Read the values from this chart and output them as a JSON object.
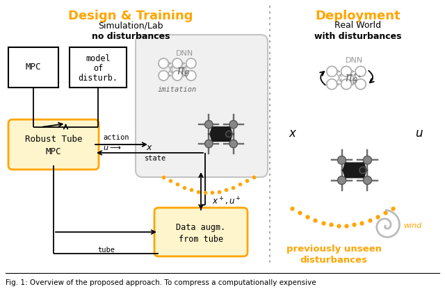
{
  "title_left": "Design & Training",
  "subtitle_left1": "Simulation/Lab",
  "subtitle_left2": "no disturbances",
  "title_right": "Deployment",
  "subtitle_right1": "Real World",
  "subtitle_right2": "with disturbances",
  "caption": "Fig. 1: Overview of the proposed approach. To compress a computationally expensive",
  "orange": "#FFA500",
  "light_orange_fill": "#FFF5CC",
  "box_edge_orange": "#FFA500",
  "node_color": "#CCCCCC",
  "node_edge": "#AAAAAA",
  "arrow_color": "#555555",
  "dnn_text_color": "#888888"
}
